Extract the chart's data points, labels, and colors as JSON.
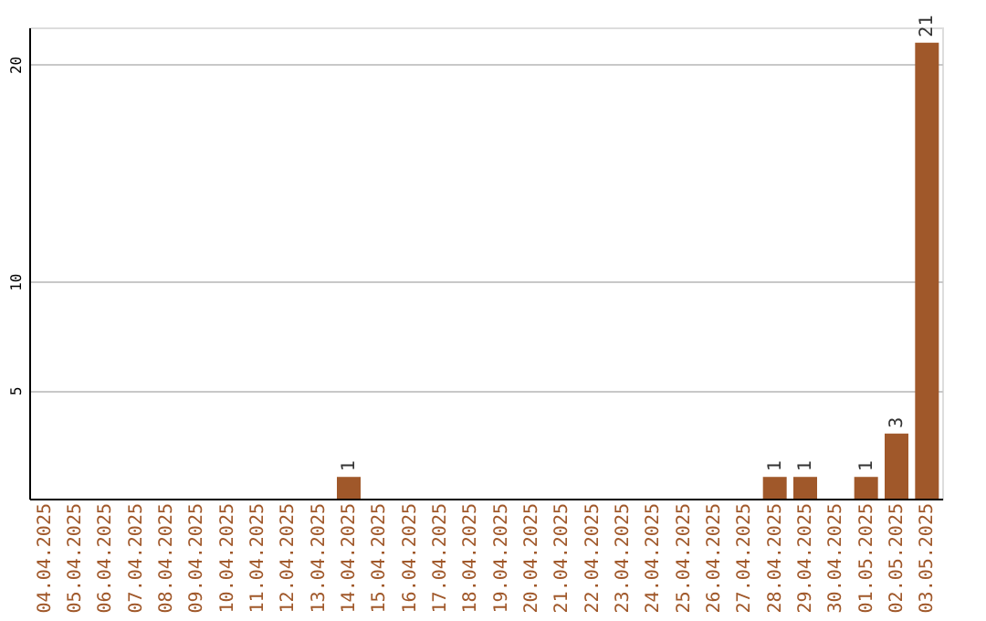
{
  "chart_data": {
    "type": "bar",
    "categories": [
      "04.04.2025",
      "05.04.2025",
      "06.04.2025",
      "07.04.2025",
      "08.04.2025",
      "09.04.2025",
      "10.04.2025",
      "11.04.2025",
      "12.04.2025",
      "13.04.2025",
      "14.04.2025",
      "15.04.2025",
      "16.04.2025",
      "17.04.2025",
      "18.04.2025",
      "19.04.2025",
      "20.04.2025",
      "21.04.2025",
      "22.04.2025",
      "23.04.2025",
      "24.04.2025",
      "25.04.2025",
      "26.04.2025",
      "27.04.2025",
      "28.04.2025",
      "29.04.2025",
      "30.04.2025",
      "01.05.2025",
      "02.05.2025",
      "03.05.2025"
    ],
    "values": [
      0,
      0,
      0,
      0,
      0,
      0,
      0,
      0,
      0,
      0,
      1,
      0,
      0,
      0,
      0,
      0,
      0,
      0,
      0,
      0,
      0,
      0,
      0,
      0,
      1,
      1,
      0,
      1,
      3,
      21
    ],
    "value_labels": [
      null,
      null,
      null,
      null,
      null,
      null,
      null,
      null,
      null,
      null,
      "1",
      null,
      null,
      null,
      null,
      null,
      null,
      null,
      null,
      null,
      null,
      null,
      null,
      null,
      "1",
      "1",
      null,
      "1",
      "3",
      "21"
    ],
    "color": "#a0582a",
    "ylim": [
      0,
      21.7
    ],
    "yticks": [
      5,
      10,
      20
    ],
    "grid": "y"
  }
}
